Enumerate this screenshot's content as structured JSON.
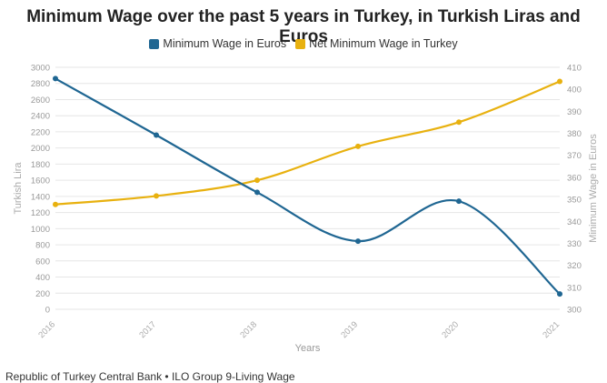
{
  "title": "Minimum Wage over the past 5 years in Turkey, in Turkish Liras and Euros",
  "source": "Republic of Turkey Central Bank • ILO Group 9-Living Wage",
  "chart_data": {
    "type": "line",
    "categories": [
      "2016",
      "2017",
      "2018",
      "2019",
      "2020",
      "2021"
    ],
    "xlabel": "Years",
    "ylabel_left": "Turkish Lira",
    "ylabel_right": "Minimum Wage in Euros",
    "ylim_left": [
      0,
      3000
    ],
    "yticks_left": [
      0,
      200,
      400,
      600,
      800,
      1000,
      1200,
      1400,
      1600,
      1800,
      2000,
      2200,
      2400,
      2600,
      2800,
      3000
    ],
    "ylim_right": [
      300,
      410
    ],
    "yticks_right": [
      300,
      310,
      320,
      330,
      340,
      350,
      360,
      370,
      380,
      390,
      400,
      410
    ],
    "grid": true,
    "legend_position": "top-center",
    "series": [
      {
        "name": "Minimum Wage in Euros",
        "axis": "left",
        "color": "#1f6692",
        "values": [
          2860,
          2160,
          1450,
          845,
          1340,
          190
        ]
      },
      {
        "name": "Net Minimum Wage in Turkey",
        "axis": "left",
        "color": "#e8b10f",
        "values": [
          1300,
          1405,
          1600,
          2020,
          2320,
          2825
        ]
      }
    ]
  }
}
